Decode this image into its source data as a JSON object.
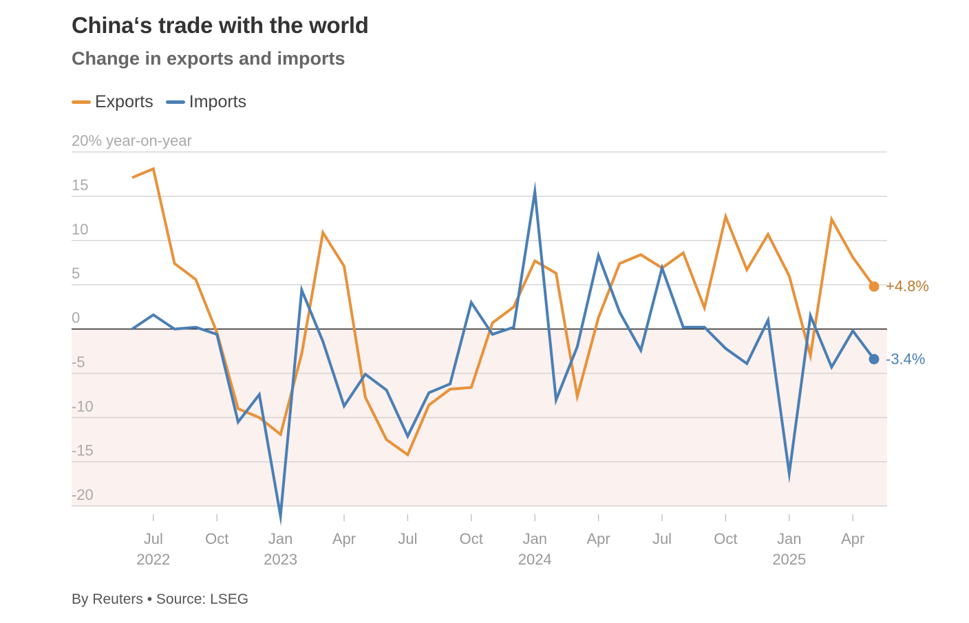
{
  "title": "China‘s trade with the world",
  "subtitle": "Change in exports and imports",
  "source": "By Reuters • Source: LSEG",
  "colors": {
    "exports": "#e8923b",
    "imports": "#4a7fb5",
    "negative_shade": "#fbf1ee"
  },
  "chart_data": {
    "type": "line",
    "title": "China‘s trade with the world",
    "subtitle": "Change in exports and imports",
    "ylabel": "20% year-on-year",
    "ylim": [
      -20,
      20
    ],
    "yticks": [
      20,
      15,
      10,
      5,
      0,
      -5,
      -10,
      -15,
      -20
    ],
    "ytick_labels": [
      "20% year-on-year",
      "15",
      "10",
      "5",
      "0",
      "-5",
      "-10",
      "-15",
      "-20"
    ],
    "x_months": [
      "2022-06",
      "2022-07",
      "2022-08",
      "2022-09",
      "2022-10",
      "2022-11",
      "2022-12",
      "2023-01",
      "2023-02",
      "2023-03",
      "2023-04",
      "2023-05",
      "2023-06",
      "2023-07",
      "2023-08",
      "2023-09",
      "2023-10",
      "2023-11",
      "2023-12",
      "2024-01",
      "2024-02",
      "2024-03",
      "2024-04",
      "2024-05",
      "2024-06",
      "2024-07",
      "2024-08",
      "2024-09",
      "2024-10",
      "2024-11",
      "2024-12",
      "2025-01",
      "2025-02",
      "2025-03",
      "2025-04",
      "2025-05"
    ],
    "xticks": [
      {
        "index": 1,
        "label": "Jul",
        "year": "2022"
      },
      {
        "index": 4,
        "label": "Oct",
        "year": ""
      },
      {
        "index": 7,
        "label": "Jan",
        "year": "2023"
      },
      {
        "index": 10,
        "label": "Apr",
        "year": ""
      },
      {
        "index": 13,
        "label": "Jul",
        "year": ""
      },
      {
        "index": 16,
        "label": "Oct",
        "year": ""
      },
      {
        "index": 19,
        "label": "Jan",
        "year": "2024"
      },
      {
        "index": 22,
        "label": "Apr",
        "year": ""
      },
      {
        "index": 25,
        "label": "Jul",
        "year": ""
      },
      {
        "index": 28,
        "label": "Oct",
        "year": ""
      },
      {
        "index": 31,
        "label": "Jan",
        "year": "2025"
      },
      {
        "index": 34,
        "label": "Apr",
        "year": ""
      }
    ],
    "legend_position": "top-left",
    "series": [
      {
        "name": "Exports",
        "color": "#e8923b",
        "end_label": "+4.8%",
        "values": [
          17.1,
          18.1,
          7.4,
          5.6,
          -0.4,
          -9.0,
          -10.0,
          -11.9,
          -2.8,
          10.9,
          7.1,
          -7.7,
          -12.5,
          -14.2,
          -8.6,
          -6.8,
          -6.6,
          0.7,
          2.5,
          7.7,
          6.3,
          -7.6,
          1.3,
          7.4,
          8.4,
          6.9,
          8.6,
          2.4,
          12.7,
          6.7,
          10.7,
          6.0,
          -3.0,
          12.4,
          8.1,
          4.8
        ]
      },
      {
        "name": "Imports",
        "color": "#4a7fb5",
        "end_label": "-3.4%",
        "values": [
          0.0,
          1.6,
          0.0,
          0.2,
          -0.6,
          -10.5,
          -7.4,
          -21.1,
          4.4,
          -1.4,
          -8.7,
          -5.1,
          -6.9,
          -12.1,
          -7.2,
          -6.2,
          3.0,
          -0.6,
          0.2,
          15.5,
          -8.0,
          -2.0,
          8.3,
          1.9,
          -2.4,
          6.9,
          0.2,
          0.2,
          -2.2,
          -3.9,
          1.0,
          -16.3,
          1.5,
          -4.3,
          -0.2,
          -3.4
        ]
      }
    ]
  }
}
